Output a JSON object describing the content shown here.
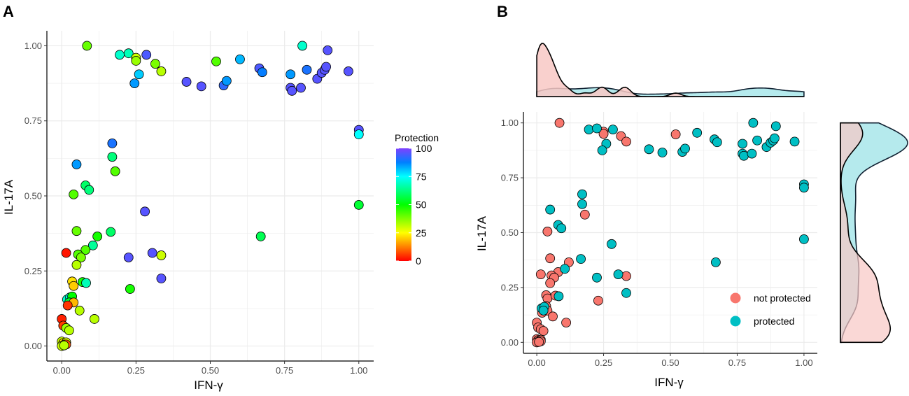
{
  "colors": {
    "not_protected": "#F8766D",
    "protected": "#00BFC4",
    "density_not_protected_fill": "#F8C8C4",
    "density_protected_fill": "#A8E6EA",
    "grid": "#EBEBEB",
    "axis": "#000000",
    "gradient": [
      "#FF0000",
      "#FF8000",
      "#FFFF00",
      "#80FF00",
      "#00FF00",
      "#00FF80",
      "#00FFFF",
      "#0080FF",
      "#8040FF"
    ]
  },
  "chart_data": [
    {
      "panel": "A",
      "type": "scatter",
      "xlabel": "IFN-γ",
      "ylabel": "IL-17A",
      "xlim": [
        -0.05,
        1.05
      ],
      "ylim": [
        -0.05,
        1.05
      ],
      "xticks": [
        "0.00",
        "0.25",
        "0.50",
        "0.75",
        "1.00"
      ],
      "yticks": [
        "0.00",
        "0.25",
        "0.50",
        "0.75",
        "1.00"
      ],
      "legend": {
        "title": "Protection",
        "placement": "right",
        "range": [
          0,
          100
        ],
        "ticks": [
          "0",
          "25",
          "50",
          "75",
          "100"
        ]
      },
      "points": [
        [
          0.085,
          1.0,
          40
        ],
        [
          0.195,
          0.97,
          70
        ],
        [
          0.225,
          0.975,
          68
        ],
        [
          0.25,
          0.96,
          30
        ],
        [
          0.25,
          0.95,
          35
        ],
        [
          0.285,
          0.97,
          95
        ],
        [
          0.315,
          0.94,
          38
        ],
        [
          0.335,
          0.915,
          32
        ],
        [
          0.26,
          0.905,
          80
        ],
        [
          0.245,
          0.875,
          85
        ],
        [
          0.42,
          0.88,
          96
        ],
        [
          0.47,
          0.865,
          96
        ],
        [
          0.52,
          0.948,
          42
        ],
        [
          0.545,
          0.868,
          92
        ],
        [
          0.555,
          0.883,
          85
        ],
        [
          0.6,
          0.955,
          82
        ],
        [
          0.665,
          0.925,
          95
        ],
        [
          0.675,
          0.912,
          88
        ],
        [
          0.77,
          0.905,
          85
        ],
        [
          0.77,
          0.86,
          96
        ],
        [
          0.775,
          0.85,
          96
        ],
        [
          0.805,
          0.86,
          96
        ],
        [
          0.81,
          1.0,
          70
        ],
        [
          0.825,
          0.92,
          90
        ],
        [
          0.86,
          0.89,
          96
        ],
        [
          0.875,
          0.91,
          96
        ],
        [
          0.885,
          0.92,
          96
        ],
        [
          0.89,
          0.93,
          96
        ],
        [
          0.895,
          0.985,
          96
        ],
        [
          0.965,
          0.915,
          96
        ],
        [
          1.0,
          0.72,
          96
        ],
        [
          1.0,
          0.705,
          75
        ],
        [
          1.0,
          0.47,
          55
        ],
        [
          0.17,
          0.675,
          90
        ],
        [
          0.17,
          0.63,
          62
        ],
        [
          0.18,
          0.582,
          42
        ],
        [
          0.05,
          0.605,
          85
        ],
        [
          0.04,
          0.505,
          42
        ],
        [
          0.08,
          0.535,
          60
        ],
        [
          0.092,
          0.52,
          62
        ],
        [
          0.28,
          0.448,
          96
        ],
        [
          0.67,
          0.365,
          58
        ],
        [
          0.05,
          0.383,
          40
        ],
        [
          0.165,
          0.38,
          60
        ],
        [
          0.12,
          0.365,
          48
        ],
        [
          0.105,
          0.335,
          65
        ],
        [
          0.08,
          0.32,
          42
        ],
        [
          0.055,
          0.305,
          42
        ],
        [
          0.065,
          0.295,
          38
        ],
        [
          0.225,
          0.295,
          96
        ],
        [
          0.305,
          0.31,
          96
        ],
        [
          0.335,
          0.302,
          30
        ],
        [
          0.335,
          0.225,
          96
        ],
        [
          0.05,
          0.27,
          32
        ],
        [
          0.035,
          0.215,
          22
        ],
        [
          0.04,
          0.2,
          20
        ],
        [
          0.07,
          0.213,
          48
        ],
        [
          0.082,
          0.21,
          68
        ],
        [
          0.23,
          0.19,
          48
        ],
        [
          0.015,
          0.31,
          2
        ],
        [
          0.018,
          0.155,
          70
        ],
        [
          0.028,
          0.162,
          72
        ],
        [
          0.035,
          0.165,
          50
        ],
        [
          0.025,
          0.145,
          55
        ],
        [
          0.04,
          0.145,
          18
        ],
        [
          0.02,
          0.135,
          5
        ],
        [
          0.06,
          0.118,
          32
        ],
        [
          0.11,
          0.09,
          32
        ],
        [
          0.0,
          0.09,
          3
        ],
        [
          0.005,
          0.068,
          6
        ],
        [
          0.015,
          0.06,
          35
        ],
        [
          0.025,
          0.052,
          32
        ],
        [
          0.0,
          0.015,
          30
        ],
        [
          0.005,
          0.01,
          22
        ],
        [
          0.015,
          0.012,
          28
        ],
        [
          0.01,
          0.005,
          35
        ],
        [
          0.015,
          0.005,
          8
        ],
        [
          0.0,
          0.0,
          30
        ],
        [
          0.008,
          0.002,
          32
        ]
      ]
    },
    {
      "panel": "B",
      "type": "scatter",
      "xlabel": "IFN-γ",
      "ylabel": "IL-17A",
      "xlim": [
        -0.05,
        1.05
      ],
      "ylim": [
        -0.05,
        1.05
      ],
      "xticks": [
        "0.00",
        "0.25",
        "0.50",
        "0.75",
        "1.00"
      ],
      "yticks": [
        "0.00",
        "0.25",
        "0.50",
        "0.75",
        "1.00"
      ],
      "legend": {
        "placement": "bottom-right",
        "entries": [
          "not protected",
          "protected"
        ]
      },
      "marginal_top": "density by group along IFN-γ",
      "marginal_right": "density by group along IL-17A",
      "series": [
        {
          "name": "not protected",
          "points": [
            [
              0.085,
              1.0
            ],
            [
              0.25,
              0.96
            ],
            [
              0.25,
              0.95
            ],
            [
              0.315,
              0.94
            ],
            [
              0.335,
              0.915
            ],
            [
              0.52,
              0.948
            ],
            [
              0.18,
              0.582
            ],
            [
              0.04,
              0.505
            ],
            [
              0.05,
              0.383
            ],
            [
              0.12,
              0.365
            ],
            [
              0.08,
              0.32
            ],
            [
              0.055,
              0.305
            ],
            [
              0.065,
              0.295
            ],
            [
              0.335,
              0.302
            ],
            [
              0.05,
              0.27
            ],
            [
              0.035,
              0.215
            ],
            [
              0.04,
              0.2
            ],
            [
              0.07,
              0.213
            ],
            [
              0.23,
              0.19
            ],
            [
              0.015,
              0.31
            ],
            [
              0.035,
              0.165
            ],
            [
              0.04,
              0.145
            ],
            [
              0.02,
              0.135
            ],
            [
              0.06,
              0.118
            ],
            [
              0.11,
              0.09
            ],
            [
              0.0,
              0.09
            ],
            [
              0.005,
              0.068
            ],
            [
              0.015,
              0.06
            ],
            [
              0.025,
              0.052
            ],
            [
              0.0,
              0.015
            ],
            [
              0.005,
              0.01
            ],
            [
              0.015,
              0.012
            ],
            [
              0.01,
              0.005
            ],
            [
              0.015,
              0.005
            ],
            [
              0.0,
              0.0
            ],
            [
              0.008,
              0.002
            ]
          ]
        },
        {
          "name": "protected",
          "points": [
            [
              0.195,
              0.97
            ],
            [
              0.225,
              0.975
            ],
            [
              0.285,
              0.97
            ],
            [
              0.26,
              0.905
            ],
            [
              0.245,
              0.875
            ],
            [
              0.42,
              0.88
            ],
            [
              0.47,
              0.865
            ],
            [
              0.545,
              0.868
            ],
            [
              0.555,
              0.883
            ],
            [
              0.6,
              0.955
            ],
            [
              0.665,
              0.925
            ],
            [
              0.675,
              0.912
            ],
            [
              0.77,
              0.905
            ],
            [
              0.77,
              0.86
            ],
            [
              0.775,
              0.85
            ],
            [
              0.805,
              0.86
            ],
            [
              0.81,
              1.0
            ],
            [
              0.825,
              0.92
            ],
            [
              0.86,
              0.89
            ],
            [
              0.875,
              0.91
            ],
            [
              0.885,
              0.92
            ],
            [
              0.89,
              0.93
            ],
            [
              0.895,
              0.985
            ],
            [
              0.965,
              0.915
            ],
            [
              1.0,
              0.72
            ],
            [
              1.0,
              0.705
            ],
            [
              1.0,
              0.47
            ],
            [
              0.17,
              0.675
            ],
            [
              0.17,
              0.63
            ],
            [
              0.05,
              0.605
            ],
            [
              0.08,
              0.535
            ],
            [
              0.092,
              0.52
            ],
            [
              0.28,
              0.448
            ],
            [
              0.67,
              0.365
            ],
            [
              0.165,
              0.38
            ],
            [
              0.105,
              0.335
            ],
            [
              0.225,
              0.295
            ],
            [
              0.305,
              0.31
            ],
            [
              0.335,
              0.225
            ],
            [
              0.082,
              0.21
            ],
            [
              0.018,
              0.155
            ],
            [
              0.028,
              0.162
            ],
            [
              0.025,
              0.145
            ]
          ]
        }
      ]
    }
  ]
}
